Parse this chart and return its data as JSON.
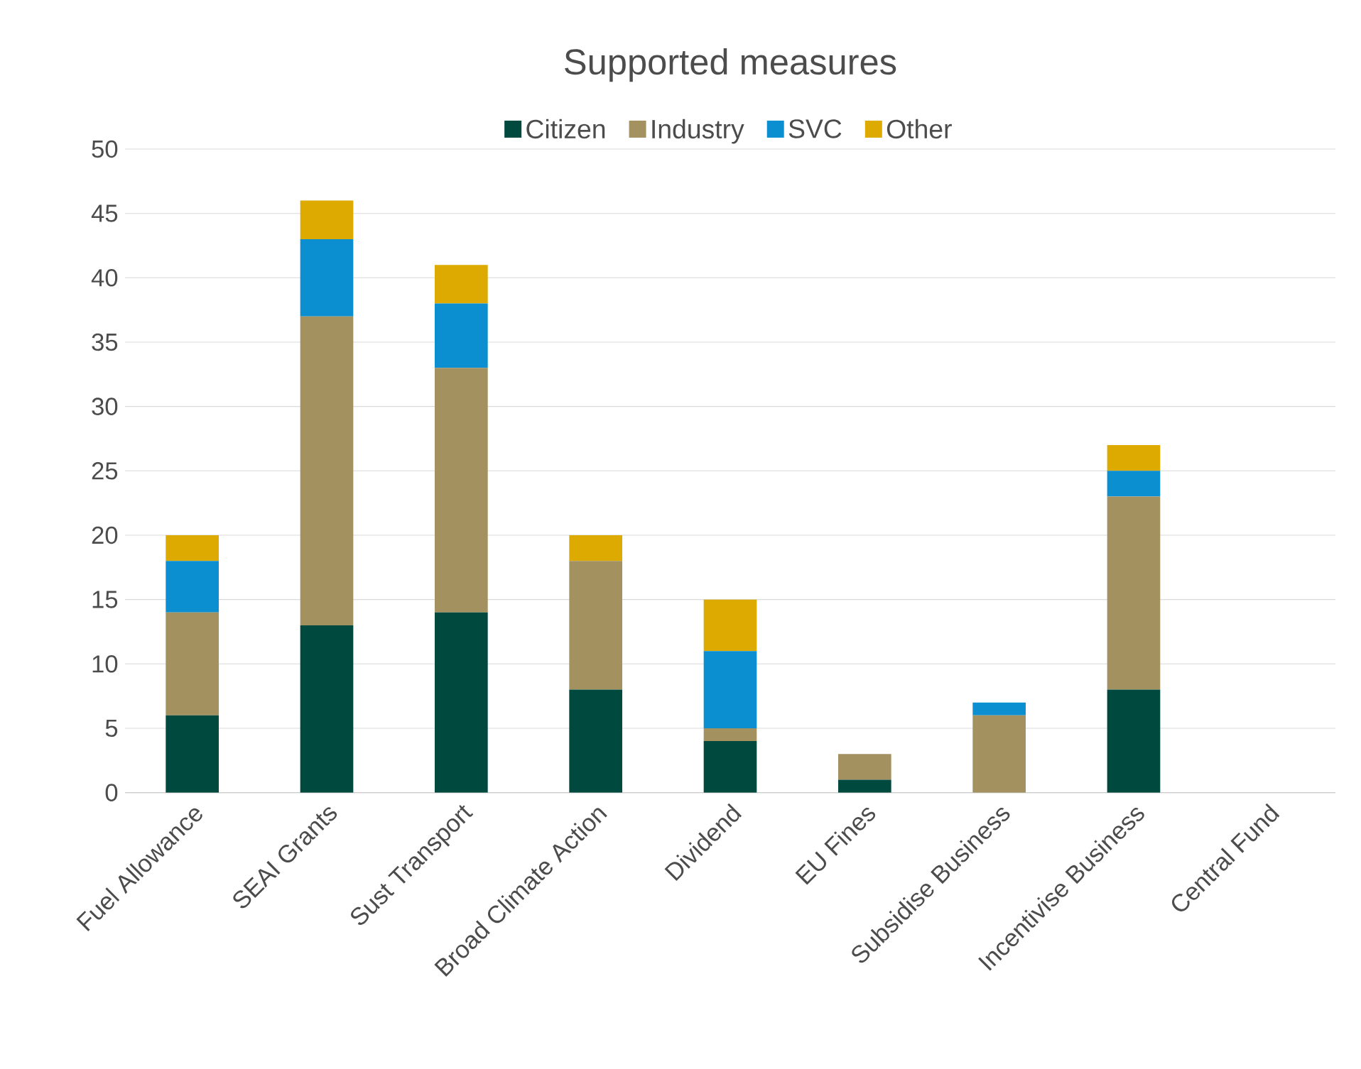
{
  "chart_data": {
    "type": "bar",
    "stacked": true,
    "title": "Supported measures",
    "categories": [
      "Fuel Allowance",
      "SEAI Grants",
      "Sust Transport",
      "Broad Climate Action",
      "Dividend",
      "EU Fines",
      "Subsidise Business",
      "Incentivise Business",
      "Central Fund"
    ],
    "series": [
      {
        "name": "Citizen",
        "color": "#00493e",
        "values": [
          6,
          13,
          14,
          8,
          4,
          1,
          0,
          8,
          0
        ]
      },
      {
        "name": "Industry",
        "color": "#a39160",
        "values": [
          8,
          24,
          19,
          10,
          1,
          2,
          6,
          15,
          0
        ]
      },
      {
        "name": "SVC",
        "color": "#0b8fd1",
        "values": [
          4,
          6,
          5,
          0,
          6,
          0,
          1,
          2,
          0
        ]
      },
      {
        "name": "Other",
        "color": "#dcaa00",
        "values": [
          2,
          3,
          3,
          2,
          4,
          0,
          0,
          2,
          0
        ]
      }
    ],
    "ylim": [
      0,
      50
    ],
    "yticks": [
      0,
      5,
      10,
      15,
      20,
      25,
      30,
      35,
      40,
      45,
      50
    ],
    "grid": "y",
    "legend": "top"
  }
}
